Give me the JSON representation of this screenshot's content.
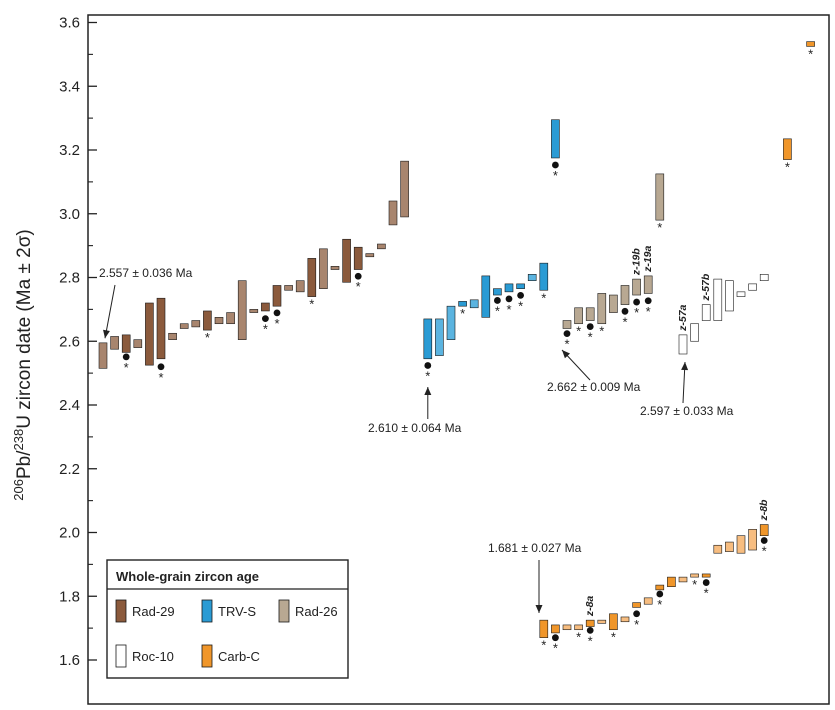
{
  "chart_data": {
    "type": "scatter",
    "ylabel": {
      "prefix_sup": "206",
      "mid1": "Pb/",
      "mid_sup": "238",
      "rest": "U zircon date (Ma ± 2σ)"
    },
    "ylim": [
      1.5,
      3.62
    ],
    "yticks": [
      "1.6",
      "1.8",
      "2.0",
      "2.2",
      "2.4",
      "2.6",
      "2.8",
      "3.0",
      "3.2",
      "3.4",
      "3.6"
    ],
    "colors": {
      "Rad-29": "#8b5a3c",
      "Rad-29-light": "#a8856e",
      "TRV-S": "#2a9bd4",
      "TRV-S-light": "#5bb4e0",
      "Rad-26": "#b8a892",
      "Roc-10": "#ffffff",
      "Carb-C": "#f0962a",
      "Carb-C-light": "#f7bd80"
    },
    "legend": {
      "title": "Whole-grain zircon age",
      "entries": [
        {
          "label": "Rad-29",
          "color_key": "Rad-29"
        },
        {
          "label": "TRV-S",
          "color_key": "TRV-S"
        },
        {
          "label": "Rad-26",
          "color_key": "Rad-26"
        },
        {
          "label": "Roc-10",
          "color_key": "Roc-10"
        },
        {
          "label": "Carb-C",
          "color_key": "Carb-C"
        }
      ]
    },
    "series": [
      {
        "sample": "Rad-29",
        "points": [
          {
            "x": 0,
            "low": 2.515,
            "high": 2.595,
            "c": "Rad-29-light"
          },
          {
            "x": 1,
            "low": 2.575,
            "high": 2.615,
            "c": "Rad-29-light"
          },
          {
            "x": 2,
            "low": 2.565,
            "high": 2.62,
            "c": "Rad-29",
            "dot": 2.551,
            "star": 1
          },
          {
            "x": 3,
            "low": 2.58,
            "high": 2.605,
            "c": "Rad-29-light"
          },
          {
            "x": 4,
            "low": 2.525,
            "high": 2.72,
            "c": "Rad-29"
          },
          {
            "x": 5,
            "low": 2.545,
            "high": 2.735,
            "c": "Rad-29",
            "dot": 2.52,
            "star": 1
          },
          {
            "x": 6,
            "low": 2.605,
            "high": 2.625,
            "c": "Rad-29-light"
          },
          {
            "x": 7,
            "low": 2.64,
            "high": 2.655,
            "c": "Rad-29-light"
          },
          {
            "x": 8,
            "low": 2.645,
            "high": 2.665,
            "c": "Rad-29-light"
          },
          {
            "x": 9,
            "low": 2.635,
            "high": 2.695,
            "c": "Rad-29",
            "star": 1
          },
          {
            "x": 10,
            "low": 2.655,
            "high": 2.675,
            "c": "Rad-29-light"
          },
          {
            "x": 11,
            "low": 2.655,
            "high": 2.69,
            "c": "Rad-29-light"
          },
          {
            "x": 12,
            "low": 2.605,
            "high": 2.79,
            "c": "Rad-29-light"
          },
          {
            "x": 13,
            "low": 2.69,
            "high": 2.7,
            "c": "Rad-29-light"
          },
          {
            "x": 14,
            "low": 2.695,
            "high": 2.72,
            "c": "Rad-29",
            "dot": 2.671,
            "star": 1
          },
          {
            "x": 15,
            "low": 2.71,
            "high": 2.775,
            "c": "Rad-29",
            "dot": 2.689,
            "star": 1
          },
          {
            "x": 16,
            "low": 2.76,
            "high": 2.775,
            "c": "Rad-29-light"
          },
          {
            "x": 17,
            "low": 2.755,
            "high": 2.79,
            "c": "Rad-29-light"
          },
          {
            "x": 18,
            "low": 2.74,
            "high": 2.86,
            "c": "Rad-29",
            "star": 1
          },
          {
            "x": 19,
            "low": 2.765,
            "high": 2.89,
            "c": "Rad-29-light"
          },
          {
            "x": 20,
            "low": 2.825,
            "high": 2.835,
            "c": "Rad-29-light"
          },
          {
            "x": 21,
            "low": 2.785,
            "high": 2.92,
            "c": "Rad-29"
          },
          {
            "x": 22,
            "low": 2.825,
            "high": 2.895,
            "c": "Rad-29",
            "dot": 2.804,
            "star": 1
          },
          {
            "x": 23,
            "low": 2.865,
            "high": 2.875,
            "c": "Rad-29-light"
          },
          {
            "x": 24,
            "low": 2.89,
            "high": 2.905,
            "c": "Rad-29-light"
          },
          {
            "x": 25,
            "low": 2.965,
            "high": 3.04,
            "c": "Rad-29-light"
          },
          {
            "x": 26,
            "low": 2.99,
            "high": 3.165,
            "c": "Rad-29-light"
          }
        ]
      },
      {
        "sample": "TRV-S",
        "points": [
          {
            "x": 28,
            "low": 2.545,
            "high": 2.67,
            "c": "TRV-S",
            "dot": 2.524,
            "star": 1
          },
          {
            "x": 29,
            "low": 2.555,
            "high": 2.67,
            "c": "TRV-S-light"
          },
          {
            "x": 30,
            "low": 2.605,
            "high": 2.71,
            "c": "TRV-S-light"
          },
          {
            "x": 31,
            "low": 2.71,
            "high": 2.725,
            "c": "TRV-S",
            "star": 1
          },
          {
            "x": 32,
            "low": 2.705,
            "high": 2.73,
            "c": "TRV-S-light"
          },
          {
            "x": 33,
            "low": 2.675,
            "high": 2.805,
            "c": "TRV-S"
          },
          {
            "x": 34,
            "low": 2.745,
            "high": 2.765,
            "c": "TRV-S",
            "dot": 2.728,
            "star": 1
          },
          {
            "x": 35,
            "low": 2.755,
            "high": 2.78,
            "c": "TRV-S",
            "dot": 2.733,
            "star": 1
          },
          {
            "x": 36,
            "low": 2.765,
            "high": 2.78,
            "c": "TRV-S",
            "dot": 2.744,
            "star": 1
          },
          {
            "x": 37,
            "low": 2.79,
            "high": 2.81,
            "c": "TRV-S-light"
          },
          {
            "x": 38,
            "low": 2.76,
            "high": 2.845,
            "c": "TRV-S",
            "star": 1
          },
          {
            "x": 39,
            "low": 3.175,
            "high": 3.295,
            "c": "TRV-S",
            "dot": 3.153,
            "star": 1
          }
        ]
      },
      {
        "sample": "Rad-26",
        "points": [
          {
            "x": 40,
            "low": 2.64,
            "high": 2.665,
            "c": "Rad-26",
            "dot": 2.624,
            "star": 1
          },
          {
            "x": 41,
            "low": 2.655,
            "high": 2.705,
            "c": "Rad-26",
            "star": 1
          },
          {
            "x": 42,
            "low": 2.665,
            "high": 2.705,
            "c": "Rad-26",
            "dot": 2.646,
            "star": 1
          },
          {
            "x": 43,
            "low": 2.655,
            "high": 2.75,
            "c": "Rad-26",
            "star": 1
          },
          {
            "x": 44,
            "low": 2.69,
            "high": 2.745,
            "c": "Rad-26"
          },
          {
            "x": 45,
            "low": 2.715,
            "high": 2.775,
            "c": "Rad-26",
            "dot": 2.694,
            "star": 1
          },
          {
            "x": 46,
            "low": 2.745,
            "high": 2.795,
            "c": "Rad-26",
            "dot": 2.723,
            "star": 1,
            "z": "z-19b"
          },
          {
            "x": 47,
            "low": 2.75,
            "high": 2.805,
            "c": "Rad-26",
            "dot": 2.727,
            "star": 1,
            "z": "z-19a"
          },
          {
            "x": 48,
            "low": 2.98,
            "high": 3.125,
            "c": "Rad-26",
            "star": 1
          }
        ]
      },
      {
        "sample": "Roc-10",
        "points": [
          {
            "x": 50,
            "low": 2.56,
            "high": 2.62,
            "c": "Roc-10",
            "z": "z-57a"
          },
          {
            "x": 51,
            "low": 2.6,
            "high": 2.655,
            "c": "Roc-10"
          },
          {
            "x": 52,
            "low": 2.665,
            "high": 2.715,
            "c": "Roc-10",
            "z": "z-57b"
          },
          {
            "x": 53,
            "low": 2.665,
            "high": 2.795,
            "c": "Roc-10"
          },
          {
            "x": 54,
            "low": 2.695,
            "high": 2.79,
            "c": "Roc-10"
          },
          {
            "x": 55,
            "low": 2.74,
            "high": 2.755,
            "c": "Roc-10"
          },
          {
            "x": 56,
            "low": 2.76,
            "high": 2.78,
            "c": "Roc-10"
          },
          {
            "x": 57,
            "low": 2.79,
            "high": 2.81,
            "c": "Roc-10"
          }
        ]
      },
      {
        "sample": "Carb-C",
        "points": [
          {
            "x": 38,
            "low": 1.67,
            "high": 1.725,
            "c": "Carb-C",
            "star": 1
          },
          {
            "x": 39,
            "low": 1.685,
            "high": 1.71,
            "c": "Carb-C",
            "dot": 1.67,
            "star": 1
          },
          {
            "x": 40,
            "low": 1.695,
            "high": 1.71,
            "c": "Carb-C-light"
          },
          {
            "x": 41,
            "low": 1.695,
            "high": 1.71,
            "c": "Carb-C-light",
            "star": 1
          },
          {
            "x": 42,
            "low": 1.705,
            "high": 1.725,
            "c": "Carb-C",
            "dot": 1.693,
            "star": 1,
            "z": "z-8a"
          },
          {
            "x": 43,
            "low": 1.715,
            "high": 1.725,
            "c": "Carb-C-light"
          },
          {
            "x": 44,
            "low": 1.695,
            "high": 1.745,
            "c": "Carb-C",
            "star": 1
          },
          {
            "x": 45,
            "low": 1.72,
            "high": 1.735,
            "c": "Carb-C-light"
          },
          {
            "x": 46,
            "low": 1.765,
            "high": 1.78,
            "c": "Carb-C",
            "dot": 1.745,
            "star": 1
          },
          {
            "x": 47,
            "low": 1.775,
            "high": 1.795,
            "c": "Carb-C-light"
          },
          {
            "x": 48,
            "low": 1.82,
            "high": 1.835,
            "c": "Carb-C",
            "dot": 1.807,
            "star": 1
          },
          {
            "x": 49,
            "low": 1.83,
            "high": 1.86,
            "c": "Carb-C"
          },
          {
            "x": 50,
            "low": 1.845,
            "high": 1.86,
            "c": "Carb-C-light"
          },
          {
            "x": 51,
            "low": 1.86,
            "high": 1.87,
            "c": "Carb-C-light",
            "star": 1
          },
          {
            "x": 52,
            "low": 1.86,
            "high": 1.87,
            "c": "Carb-C",
            "dot": 1.843,
            "star": 1
          },
          {
            "x": 53,
            "low": 1.935,
            "high": 1.96,
            "c": "Carb-C-light"
          },
          {
            "x": 54,
            "low": 1.94,
            "high": 1.97,
            "c": "Carb-C-light"
          },
          {
            "x": 55,
            "low": 1.935,
            "high": 1.99,
            "c": "Carb-C-light"
          },
          {
            "x": 56,
            "low": 1.945,
            "high": 2.01,
            "c": "Carb-C-light"
          },
          {
            "x": 57,
            "low": 1.99,
            "high": 2.025,
            "c": "Carb-C",
            "dot": 1.975,
            "star": 1,
            "z": "z-8b"
          },
          {
            "x": 59,
            "low": 3.17,
            "high": 3.235,
            "c": "Carb-C",
            "star": 1
          },
          {
            "x": 61,
            "low": 3.525,
            "high": 3.54,
            "c": "Carb-C",
            "star": 1
          }
        ]
      }
    ],
    "annotations": [
      {
        "text": "2.557 ± 0.036 Ma",
        "x": 0,
        "y": 2.595
      },
      {
        "text": "2.610 ± 0.064 Ma",
        "x": 28,
        "y": 2.45
      },
      {
        "text": "2.662 ± 0.009 Ma",
        "x": 40,
        "y": 2.6
      },
      {
        "text": "2.597 ± 0.033 Ma",
        "x": 50,
        "y": 2.545
      },
      {
        "text": "1.681 ± 0.027 Ma",
        "x": 38,
        "y": 1.73
      }
    ]
  }
}
